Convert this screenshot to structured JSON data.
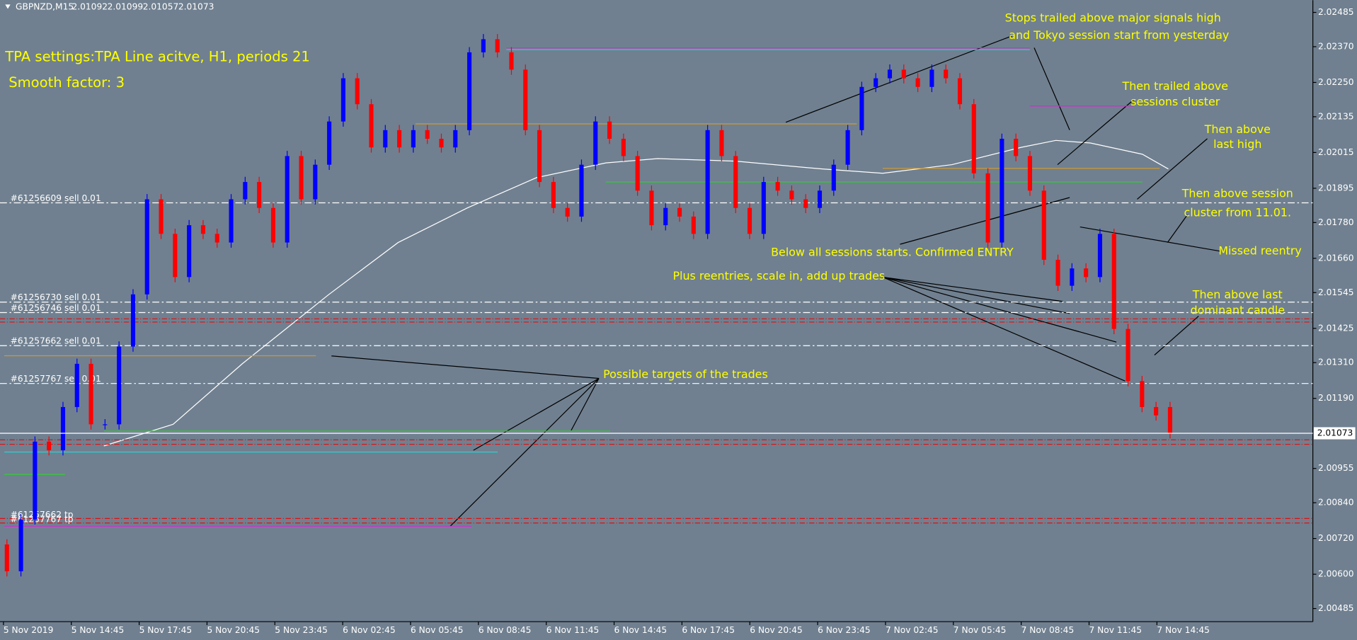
{
  "chart_data": {
    "type": "candlestick",
    "symbol": "GBPNZD,M15",
    "quote": [
      2.01092,
      2.01099,
      2.01057,
      2.01073
    ],
    "up_color": "#0000ff",
    "down_color": "#ff0000",
    "open": [
      2.007,
      2.0061,
      2.00784,
      2.01045,
      2.01016,
      2.01161,
      2.01306,
      2.01103,
      2.01103,
      2.01364,
      2.01539,
      2.01858,
      2.01742,
      2.01597,
      2.01771,
      2.01742,
      2.01713,
      2.01858,
      2.01916,
      2.01829,
      2.01713,
      2.02003,
      2.01858,
      2.01974,
      2.02119,
      2.02264,
      2.02177,
      2.02032,
      2.0209,
      2.02032,
      2.0209,
      2.02061,
      2.02032,
      2.0209,
      2.02351,
      2.02395,
      2.02351,
      2.02293,
      2.0209,
      2.01916,
      2.01829,
      2.018,
      2.01974,
      2.02119,
      2.02061,
      2.02003,
      2.01887,
      2.01771,
      2.01829,
      2.018,
      2.01742,
      2.0209,
      2.02003,
      2.01829,
      2.01742,
      2.01916,
      2.01887,
      2.01858,
      2.01829,
      2.01887,
      2.01974,
      2.0209,
      2.02235,
      2.02264,
      2.02293,
      2.02264,
      2.02235,
      2.02293,
      2.02264,
      2.02177,
      2.01945,
      2.01713,
      2.02061,
      2.02003,
      2.01887,
      2.01655,
      2.01568,
      2.01626,
      2.01597,
      2.01742,
      2.01423,
      2.01248,
      2.01161,
      2.01161
    ],
    "close": [
      2.0061,
      2.00784,
      2.01045,
      2.01016,
      2.01161,
      2.01306,
      2.01103,
      2.01103,
      2.01364,
      2.01539,
      2.01858,
      2.01742,
      2.01597,
      2.01771,
      2.01742,
      2.01713,
      2.01858,
      2.01916,
      2.01829,
      2.01713,
      2.02003,
      2.01858,
      2.01974,
      2.02119,
      2.02264,
      2.02177,
      2.02032,
      2.0209,
      2.02032,
      2.0209,
      2.02061,
      2.02032,
      2.0209,
      2.02351,
      2.02395,
      2.02351,
      2.02293,
      2.0209,
      2.01916,
      2.01829,
      2.018,
      2.01974,
      2.02119,
      2.02061,
      2.02003,
      2.01887,
      2.01771,
      2.01829,
      2.018,
      2.01742,
      2.0209,
      2.02003,
      2.01829,
      2.01742,
      2.01916,
      2.01887,
      2.01858,
      2.01829,
      2.01887,
      2.01974,
      2.0209,
      2.02235,
      2.02264,
      2.02293,
      2.02264,
      2.02235,
      2.02293,
      2.02264,
      2.02177,
      2.01945,
      2.01713,
      2.02061,
      2.02003,
      2.01887,
      2.01655,
      2.01568,
      2.01626,
      2.01597,
      2.01742,
      2.01423,
      2.01248,
      2.01161,
      2.01133,
      2.01073
    ],
    "x_labels": [
      "5 Nov 2019",
      "5 Nov 14:45",
      "5 Nov 17:45",
      "5 Nov 20:45",
      "5 Nov 23:45",
      "6 Nov 02:45",
      "6 Nov 05:45",
      "6 Nov 08:45",
      "6 Nov 11:45",
      "6 Nov 14:45",
      "6 Nov 17:45",
      "6 Nov 20:45",
      "6 Nov 23:45",
      "7 Nov 02:45",
      "7 Nov 05:45",
      "7 Nov 08:45",
      "7 Nov 11:45",
      "7 Nov 14:45"
    ],
    "ylim": [
      2.00441,
      2.02526
    ],
    "yticks": [
      {
        "value": 2.02485,
        "label": "2.02485"
      },
      {
        "value": 2.0237,
        "label": "2.02370"
      },
      {
        "value": 2.0225,
        "label": "2.02250"
      },
      {
        "value": 2.02135,
        "label": "2.02135"
      },
      {
        "value": 2.02015,
        "label": "2.02015"
      },
      {
        "value": 2.01895,
        "label": "2.01895"
      },
      {
        "value": 2.0178,
        "label": "2.01780"
      },
      {
        "value": 2.0166,
        "label": "2.01660"
      },
      {
        "value": 2.01545,
        "label": "2.01545"
      },
      {
        "value": 2.01425,
        "label": "2.01425"
      },
      {
        "value": 2.0131,
        "label": "2.01310"
      },
      {
        "value": 2.0119,
        "label": "2.01190"
      },
      {
        "value": 2.00955,
        "label": "2.00955"
      },
      {
        "value": 2.0084,
        "label": "2.00840"
      },
      {
        "value": 2.0072,
        "label": "2.00720"
      },
      {
        "value": 2.006,
        "label": "2.00600"
      },
      {
        "value": 2.00485,
        "label": "2.00485"
      }
    ],
    "current_price": 2.01073,
    "orders": [
      {
        "label": "#61256609 sell 0.01",
        "price": 2.01846
      },
      {
        "label": "#61256730 sell 0.01",
        "price": 2.01513
      },
      {
        "label": "#61256746 sell 0.01",
        "price": 2.01478
      },
      {
        "label": "#61257662 sell 0.01",
        "price": 2.01367
      },
      {
        "label": "#61257767 sell 0.01",
        "price": 2.0124
      }
    ],
    "tp_labels": [
      "#61257662 tp",
      "#61257767 tp"
    ],
    "stop_levels": [
      2.01457,
      2.01446,
      2.01051,
      2.01036,
      2.00787,
      2.00772
    ],
    "levels": [
      {
        "price": 2.02366,
        "color": "#cc33cc"
      },
      {
        "price": 2.0236,
        "color": "#33cccc"
      },
      {
        "price": 2.02111,
        "color": "#cc9933"
      },
      {
        "price": 2.02171,
        "color": "#cc33cc"
      },
      {
        "price": 2.01962,
        "color": "#cc9933"
      },
      {
        "price": 2.01916,
        "color": "#33cc33"
      },
      {
        "price": 2.01333,
        "color": "#cc9933"
      },
      {
        "price": 2.0108,
        "color": "#33cc33"
      },
      {
        "price": 2.0101,
        "color": "#33cccc"
      },
      {
        "price": 2.00935,
        "color": "#33cc33"
      },
      {
        "price": 2.00761,
        "color": "#cc33cc"
      }
    ],
    "annotations": [
      "TPA settings:TPA Line acitve, H1, periods 21",
      "Smooth factor: 3",
      "Stops trailed above major signals high",
      "and Tokyo session start from yesterday",
      "Then trailed above",
      "sessions cluster",
      "Then above",
      "last high",
      "Then above session",
      "cluster from 11.01.",
      "Missed reentry",
      "Below all sessions starts. Confirmed ENTRY",
      "Plus reentries, scale in, add up trades",
      "Then above last",
      "dominant candle",
      "Possible targets of the trades"
    ]
  }
}
